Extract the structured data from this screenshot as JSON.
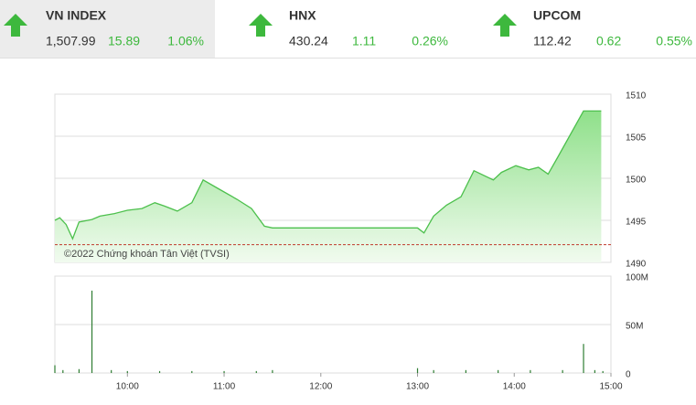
{
  "header": {
    "tickers": [
      {
        "name": "VN INDEX",
        "value": "1,507.99",
        "change": "15.89",
        "pct": "1.06%"
      },
      {
        "name": "HNX",
        "value": "430.24",
        "change": "1.11",
        "pct": "0.26%"
      },
      {
        "name": "UPCOM",
        "value": "112.42",
        "change": "0.62",
        "pct": "0.55%"
      }
    ]
  },
  "chart_data": [
    {
      "type": "area",
      "color": "#4cc04c",
      "watermark": "©2022 Chứng khoán Tân Việt (TVSI)",
      "x": [
        555,
        558,
        562,
        566,
        570,
        578,
        583,
        592,
        600,
        609,
        617,
        623,
        631,
        640,
        647,
        657,
        668,
        677,
        685,
        690,
        780,
        784,
        790,
        798,
        807,
        815,
        827,
        832,
        841,
        849,
        855,
        861,
        867,
        883,
        894
      ],
      "values": [
        1495.0,
        1495.3,
        1494.5,
        1492.8,
        1494.8,
        1495.1,
        1495.5,
        1495.8,
        1496.2,
        1496.4,
        1497.1,
        1496.7,
        1496.1,
        1497.1,
        1499.8,
        1498.7,
        1497.5,
        1496.4,
        1494.3,
        1494.1,
        1494.1,
        1493.5,
        1495.5,
        1496.8,
        1497.8,
        1500.9,
        1499.8,
        1500.7,
        1501.5,
        1501.0,
        1501.3,
        1500.5,
        1502.5,
        1508.0,
        1508.0
      ],
      "reference_line": 1492.1,
      "reference_color": "#c0392b",
      "xlim": [
        555,
        900
      ],
      "ylim": [
        1490,
        1510
      ],
      "yticks": [
        1490,
        1495,
        1500,
        1505,
        1510
      ],
      "grid": true
    },
    {
      "type": "bar",
      "color": "#2e7d32",
      "x": [
        555,
        560,
        570,
        578,
        590,
        600,
        620,
        640,
        660,
        680,
        690,
        780,
        790,
        810,
        830,
        850,
        870,
        883,
        890,
        895
      ],
      "values": [
        8000000,
        3000000,
        4000000,
        85000000,
        3000000,
        2000000,
        2000000,
        2000000,
        2000000,
        2000000,
        3000000,
        5000000,
        3000000,
        3000000,
        3000000,
        3000000,
        3000000,
        30000000,
        3000000,
        2000000
      ],
      "xlim": [
        555,
        900
      ],
      "xticks": [
        {
          "value": 600,
          "label": "10:00"
        },
        {
          "value": 660,
          "label": "11:00"
        },
        {
          "value": 720,
          "label": "12:00"
        },
        {
          "value": 780,
          "label": "13:00"
        },
        {
          "value": 840,
          "label": "14:00"
        },
        {
          "value": 900,
          "label": "15:00"
        }
      ],
      "ylim": [
        0,
        100000000
      ],
      "yticks": [
        0,
        {
          "value": 50000000,
          "label": "50M"
        },
        {
          "value": 100000000,
          "label": "100M"
        }
      ],
      "grid": true
    }
  ]
}
